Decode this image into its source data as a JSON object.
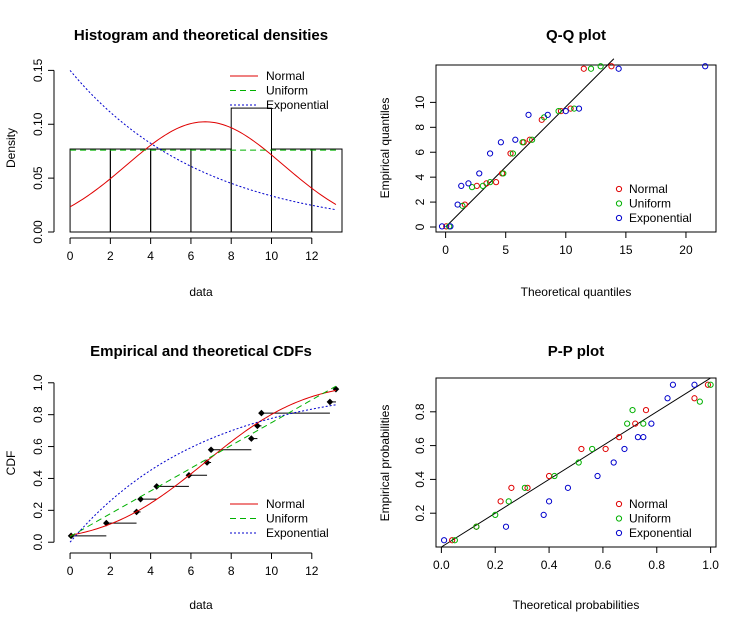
{
  "colors": {
    "normal": "#DF0000",
    "uniform": "#00B000",
    "exponential": "#0000CC",
    "black": "#000000"
  },
  "chart_data": [
    {
      "type": "histogram",
      "title": "Histogram and theoretical densities",
      "xlabel": "data",
      "ylabel": "Density",
      "xlim": [
        -0.5,
        13.5
      ],
      "ylim": [
        0,
        0.155
      ],
      "xticks": [
        0,
        2,
        4,
        6,
        8,
        10,
        12
      ],
      "yticks": [
        0.0,
        0.05,
        0.1,
        0.15
      ],
      "ytick_labels": [
        "0.00",
        "0.05",
        "0.10",
        "0.15"
      ],
      "legend": {
        "position": "top-right",
        "entries": [
          "Normal",
          "Uniform",
          "Exponential"
        ]
      },
      "bins": [
        {
          "x0": 0,
          "x1": 2,
          "density": 0.077
        },
        {
          "x0": 2,
          "x1": 4,
          "density": 0.077
        },
        {
          "x0": 4,
          "x1": 6,
          "density": 0.077
        },
        {
          "x0": 6,
          "x1": 8,
          "density": 0.077
        },
        {
          "x0": 8,
          "x1": 10,
          "density": 0.115
        },
        {
          "x0": 10,
          "x1": 12,
          "density": 0.077
        },
        {
          "x0": 12,
          "x1": 14,
          "density": 0.077
        }
      ],
      "series": [
        {
          "name": "Normal",
          "dist": "normal",
          "mean": 6.7,
          "sd": 3.9,
          "x_from": 0,
          "x_to": 13.2
        },
        {
          "name": "Uniform",
          "dist": "uniform",
          "density": 0.076,
          "x_from": 0,
          "x_to": 13.2
        },
        {
          "name": "Exponential",
          "dist": "exponential",
          "rate": 0.15,
          "x_from": 0,
          "x_to": 13.2
        }
      ]
    },
    {
      "type": "scatter",
      "title": "Q-Q plot",
      "xlabel": "Theoretical quantiles",
      "ylabel": "Empirical quantiles",
      "xlim": [
        -0.8,
        22.5
      ],
      "ylim": [
        -0.4,
        13.0
      ],
      "xticks": [
        0,
        5,
        10,
        15,
        20
      ],
      "yticks": [
        0,
        2,
        4,
        6,
        8,
        10
      ],
      "reference_line": {
        "from": [
          0,
          0
        ],
        "to": [
          14,
          13.5
        ]
      },
      "legend": {
        "position": "bottom-right",
        "entries": [
          "Normal",
          "Uniform",
          "Exponential"
        ]
      },
      "series": [
        {
          "name": "Normal",
          "points": [
            [
              0.05,
              0.05
            ],
            [
              1.6,
              1.8
            ],
            [
              2.6,
              3.3
            ],
            [
              3.4,
              3.5
            ],
            [
              4.2,
              3.6
            ],
            [
              4.7,
              4.3
            ],
            [
              5.4,
              5.9
            ],
            [
              6.5,
              6.8
            ],
            [
              7.0,
              7.0
            ],
            [
              8.0,
              8.6
            ],
            [
              9.6,
              9.3
            ],
            [
              10.4,
              9.5
            ],
            [
              11.5,
              12.7
            ],
            [
              13.8,
              12.9
            ]
          ]
        },
        {
          "name": "Uniform",
          "points": [
            [
              0.3,
              0.05
            ],
            [
              1.4,
              1.7
            ],
            [
              2.2,
              3.2
            ],
            [
              3.1,
              3.3
            ],
            [
              3.7,
              3.6
            ],
            [
              4.8,
              4.3
            ],
            [
              5.6,
              5.9
            ],
            [
              6.4,
              6.8
            ],
            [
              7.2,
              7.0
            ],
            [
              8.2,
              8.8
            ],
            [
              9.4,
              9.3
            ],
            [
              10.7,
              9.5
            ],
            [
              12.1,
              12.7
            ],
            [
              12.9,
              12.9
            ]
          ]
        },
        {
          "name": "Exponential",
          "points": [
            [
              -0.3,
              0.05
            ],
            [
              0.4,
              0.05
            ],
            [
              1.0,
              1.8
            ],
            [
              1.3,
              3.3
            ],
            [
              1.9,
              3.5
            ],
            [
              2.8,
              4.3
            ],
            [
              3.7,
              5.9
            ],
            [
              4.6,
              6.8
            ],
            [
              5.8,
              7.0
            ],
            [
              6.9,
              9.0
            ],
            [
              8.5,
              9.0
            ],
            [
              10.0,
              9.3
            ],
            [
              11.1,
              9.5
            ],
            [
              14.4,
              12.7
            ],
            [
              21.6,
              12.9
            ]
          ]
        }
      ]
    },
    {
      "type": "line",
      "title": "Empirical and theoretical CDFs",
      "xlabel": "data",
      "ylabel": "CDF",
      "xlim": [
        -0.5,
        13.5
      ],
      "ylim": [
        -0.03,
        1.03
      ],
      "xticks": [
        0,
        2,
        4,
        6,
        8,
        10,
        12
      ],
      "yticks": [
        0.0,
        0.2,
        0.4,
        0.6,
        0.8,
        1.0
      ],
      "ytick_labels": [
        "0.0",
        "0.2",
        "0.4",
        "0.6",
        "0.8",
        "1.0"
      ],
      "legend": {
        "position": "bottom-right",
        "entries": [
          "Normal",
          "Uniform",
          "Exponential"
        ]
      },
      "ecdf": [
        [
          0.05,
          0.04
        ],
        [
          1.8,
          0.12
        ],
        [
          3.3,
          0.19
        ],
        [
          3.5,
          0.27
        ],
        [
          4.3,
          0.35
        ],
        [
          5.9,
          0.42
        ],
        [
          6.8,
          0.5
        ],
        [
          7.0,
          0.58
        ],
        [
          9.0,
          0.65
        ],
        [
          9.3,
          0.73
        ],
        [
          9.5,
          0.81
        ],
        [
          12.9,
          0.88
        ],
        [
          13.2,
          0.96
        ]
      ],
      "series": [
        {
          "name": "Normal",
          "dist": "normal",
          "mean": 6.7,
          "sd": 3.9,
          "x_from": 0,
          "x_to": 13.2
        },
        {
          "name": "Uniform",
          "dist": "uniform",
          "min": -0.5,
          "max": 13.5,
          "x_from": 0,
          "x_to": 13.2
        },
        {
          "name": "Exponential",
          "dist": "exponential",
          "rate": 0.15,
          "x_from": 0,
          "x_to": 13.2
        }
      ]
    },
    {
      "type": "scatter",
      "title": "P-P plot",
      "xlabel": "Theoretical probabilities",
      "ylabel": "Empirical probabilities",
      "xlim": [
        -0.02,
        1.02
      ],
      "ylim": [
        0.0,
        1.0
      ],
      "xticks": [
        0.0,
        0.2,
        0.4,
        0.6,
        0.8,
        1.0
      ],
      "xtick_labels": [
        "0.0",
        "0.2",
        "0.4",
        "0.6",
        "0.8",
        "1.0"
      ],
      "yticks": [
        0.2,
        0.4,
        0.6,
        0.8
      ],
      "ytick_labels": [
        "0.2",
        "0.4",
        "0.6",
        "0.8"
      ],
      "reference_line": {
        "from": [
          0,
          0
        ],
        "to": [
          1,
          1
        ]
      },
      "legend": {
        "position": "bottom-right",
        "entries": [
          "Normal",
          "Uniform",
          "Exponential"
        ]
      },
      "series": [
        {
          "name": "Normal",
          "points": [
            [
              0.04,
              0.04
            ],
            [
              0.13,
              0.12
            ],
            [
              0.22,
              0.27
            ],
            [
              0.26,
              0.35
            ],
            [
              0.32,
              0.35
            ],
            [
              0.4,
              0.42
            ],
            [
              0.52,
              0.58
            ],
            [
              0.61,
              0.58
            ],
            [
              0.66,
              0.65
            ],
            [
              0.72,
              0.73
            ],
            [
              0.76,
              0.81
            ],
            [
              0.94,
              0.88
            ],
            [
              0.99,
              0.96
            ]
          ]
        },
        {
          "name": "Uniform",
          "points": [
            [
              0.05,
              0.04
            ],
            [
              0.13,
              0.12
            ],
            [
              0.2,
              0.19
            ],
            [
              0.25,
              0.27
            ],
            [
              0.31,
              0.35
            ],
            [
              0.42,
              0.42
            ],
            [
              0.51,
              0.5
            ],
            [
              0.56,
              0.58
            ],
            [
              0.69,
              0.73
            ],
            [
              0.71,
              0.81
            ],
            [
              0.75,
              0.73
            ],
            [
              0.96,
              0.86
            ],
            [
              1.0,
              0.96
            ]
          ]
        },
        {
          "name": "Exponential",
          "points": [
            [
              0.01,
              0.04
            ],
            [
              0.24,
              0.12
            ],
            [
              0.38,
              0.19
            ],
            [
              0.4,
              0.27
            ],
            [
              0.47,
              0.35
            ],
            [
              0.58,
              0.42
            ],
            [
              0.64,
              0.5
            ],
            [
              0.68,
              0.58
            ],
            [
              0.73,
              0.65
            ],
            [
              0.75,
              0.65
            ],
            [
              0.78,
              0.73
            ],
            [
              0.84,
              0.88
            ],
            [
              0.86,
              0.96
            ],
            [
              0.94,
              0.96
            ]
          ]
        }
      ]
    }
  ]
}
